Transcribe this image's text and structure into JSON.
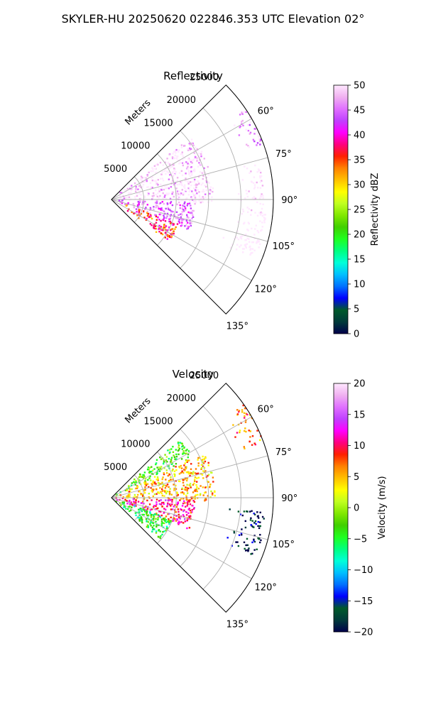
{
  "figure": {
    "suptitle": "SKYLER-HU  20250620  022846.353 UTC Elevation 02°"
  },
  "chart_data": [
    {
      "type": "heatmap",
      "title": "Reflectivity",
      "projection": "polar-sector",
      "theta_range_deg": [
        45,
        135
      ],
      "range_max_m": 25000,
      "range_tick_values": [
        5000,
        10000,
        15000,
        20000,
        25000
      ],
      "range_tick_labels": [
        "5000",
        "10000",
        "15000",
        "20000",
        "25000"
      ],
      "range_axis_label": "Meters",
      "theta_tick_labels": [
        "60°",
        "75°",
        "90°",
        "105°",
        "120°",
        "135°"
      ],
      "theta_tick_values": [
        60,
        75,
        90,
        105,
        120,
        135
      ],
      "grid": true,
      "colorbar": {
        "label": "Reflectivity dBZ",
        "range": [
          0,
          50
        ],
        "ticks": [
          0,
          5,
          10,
          15,
          20,
          25,
          30,
          35,
          40,
          45,
          50
        ],
        "tick_labels": [
          "0",
          "5",
          "10",
          "15",
          "20",
          "25",
          "30",
          "35",
          "40",
          "45",
          "50"
        ],
        "colormap_stops": [
          "#00004a",
          "#003a3a",
          "#005a2a",
          "#0000ff",
          "#0070ff",
          "#00c0ff",
          "#00ffd8",
          "#00ff80",
          "#20ff20",
          "#40d000",
          "#80e800",
          "#c0ff20",
          "#ffff00",
          "#ffc000",
          "#ff8000",
          "#ff2000",
          "#ff0080",
          "#ff00ff",
          "#c040ff",
          "#e070ff",
          "#f0b0f0",
          "#ffe8ff"
        ]
      },
      "echo_regions": [
        {
          "theta": [
            52,
            92
          ],
          "r": [
            0,
            15800
          ],
          "level": 21
        },
        {
          "theta": [
            92,
            112
          ],
          "r": [
            0,
            13000
          ],
          "level": 19
        },
        {
          "theta": [
            110,
            126
          ],
          "r": [
            2000,
            11000
          ],
          "level": 15
        },
        {
          "theta": [
            95,
            110
          ],
          "r": [
            19000,
            24000
          ],
          "level": 28
        },
        {
          "theta": [
            104,
            112
          ],
          "r": [
            18000,
            23500
          ],
          "level": 36
        },
        {
          "theta": [
            55,
            70
          ],
          "r": [
            21000,
            25000
          ],
          "level": 20
        },
        {
          "theta": [
            76,
            96
          ],
          "r": [
            19000,
            23500
          ],
          "level": 22
        }
      ]
    },
    {
      "type": "heatmap",
      "title": "Velocity",
      "projection": "polar-sector",
      "theta_range_deg": [
        45,
        135
      ],
      "range_max_m": 25000,
      "range_tick_values": [
        5000,
        10000,
        15000,
        20000,
        25000
      ],
      "range_tick_labels": [
        "5000",
        "10000",
        "15000",
        "20000",
        "25000"
      ],
      "range_axis_label": "Meters",
      "theta_tick_labels": [
        "60°",
        "75°",
        "90°",
        "105°",
        "120°",
        "135°"
      ],
      "theta_tick_values": [
        60,
        75,
        90,
        105,
        120,
        135
      ],
      "grid": true,
      "colorbar": {
        "label": "Velocity (m/s)",
        "range": [
          -20,
          20
        ],
        "ticks": [
          -20,
          -15,
          -10,
          -5,
          0,
          5,
          10,
          15,
          20
        ],
        "tick_labels": [
          "−20",
          "−15",
          "−10",
          "−5",
          "0",
          "5",
          "10",
          "15",
          "20"
        ],
        "colormap_stops": [
          "#00004a",
          "#003a3a",
          "#005a2a",
          "#0000ff",
          "#0070ff",
          "#00c0ff",
          "#00ffd8",
          "#00ff80",
          "#20ff20",
          "#40d000",
          "#80e800",
          "#c0ff20",
          "#ffff00",
          "#ffc000",
          "#ff8000",
          "#ff2000",
          "#ff0080",
          "#ff00ff",
          "#c040ff",
          "#e070ff",
          "#f0b0f0",
          "#ffe8ff"
        ]
      },
      "echo_regions": [
        {
          "theta": [
            50,
            64
          ],
          "r": [
            0,
            14000
          ],
          "level": 9
        },
        {
          "theta": [
            64,
            92
          ],
          "r": [
            0,
            16000
          ],
          "level": 13
        },
        {
          "theta": [
            92,
            112
          ],
          "r": [
            0,
            13000
          ],
          "level": 16
        },
        {
          "theta": [
            110,
            130
          ],
          "r": [
            0,
            10000
          ],
          "level": 8
        },
        {
          "theta": [
            95,
            112
          ],
          "r": [
            18000,
            24000
          ],
          "level": 1
        },
        {
          "theta": [
            55,
            70
          ],
          "r": [
            21000,
            25000
          ],
          "level": 14
        }
      ]
    }
  ]
}
